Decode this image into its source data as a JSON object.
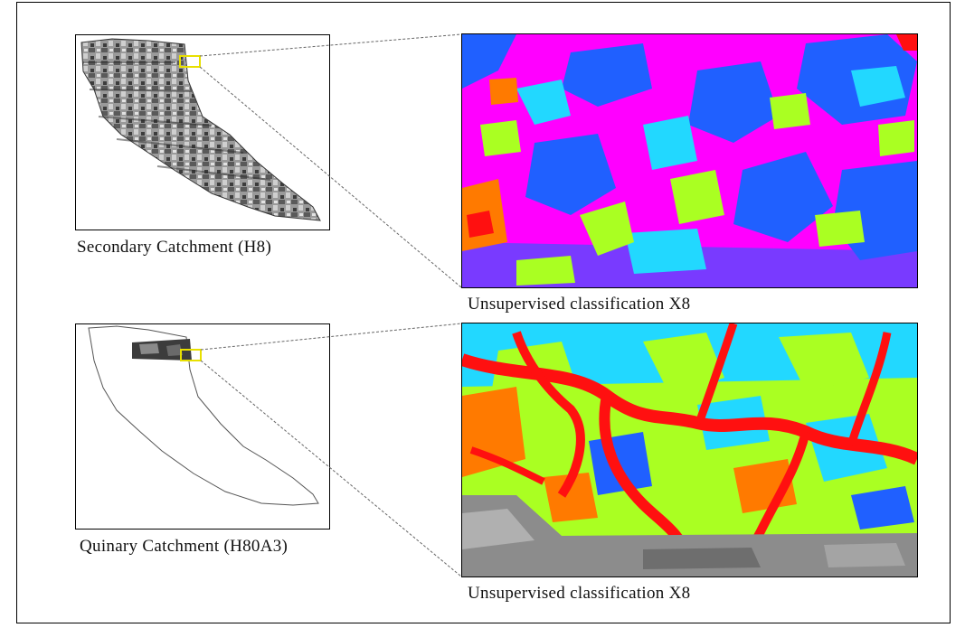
{
  "top_row": {
    "overview_caption": "Secondary Catchment (H8)",
    "detail_caption": "Unsupervised classification X8"
  },
  "bottom_row": {
    "overview_caption": "Quinary Catchment (H80A3)",
    "detail_caption": "Unsupervised classification X8"
  },
  "colors": {
    "class_magenta": "#ff00ff",
    "class_red": "#ff1010",
    "class_orange": "#ff7a00",
    "class_yellow_green": "#aaff22",
    "class_cyan": "#22d8ff",
    "class_blue": "#2060ff",
    "highlight_box": "#e8e000"
  }
}
